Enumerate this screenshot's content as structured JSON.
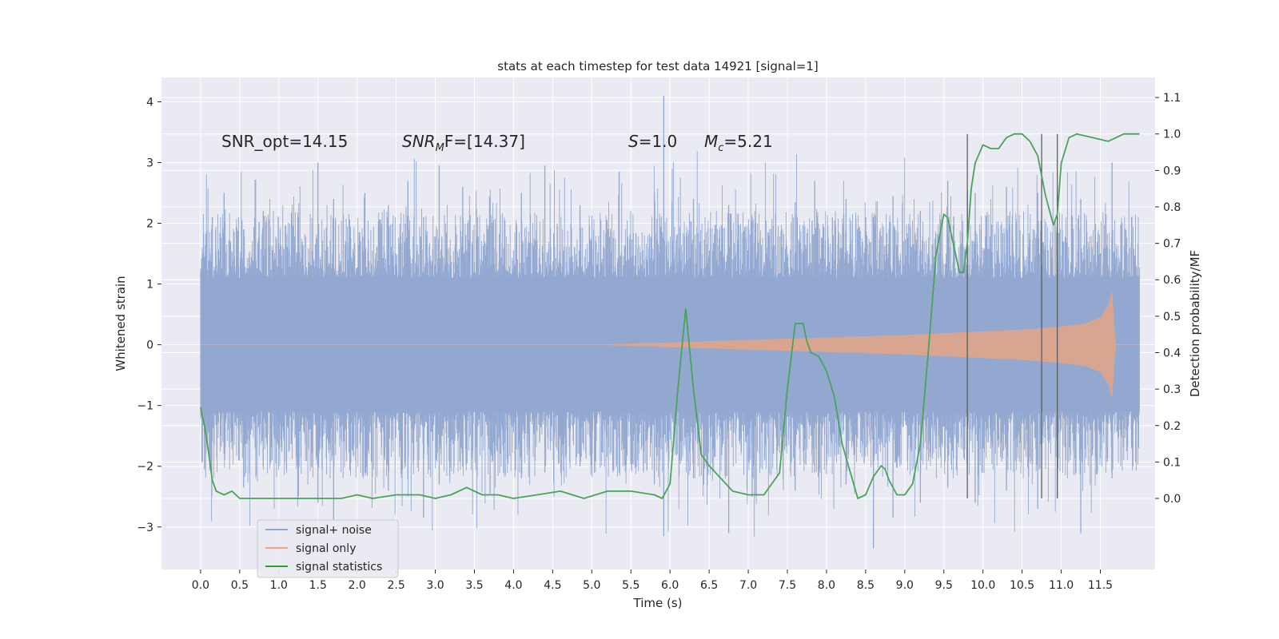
{
  "chart_data": {
    "type": "line",
    "title": "stats at each timestep for test data 14921 [signal=1]",
    "xlabel": "Time (s)",
    "ylabel_left": "Whitened strain",
    "ylabel_right": "Detection probability/MF",
    "xlim": [
      -0.5,
      12.2
    ],
    "ylim_left": [
      -3.7,
      4.4
    ],
    "ylim_right": [
      -0.195,
      1.155
    ],
    "x_ticks": [
      0,
      0.5,
      1,
      1.5,
      2,
      2.5,
      3,
      3.5,
      4,
      4.5,
      5,
      5.5,
      6,
      6.5,
      7,
      7.5,
      8,
      8.5,
      9,
      9.5,
      10,
      10.5,
      11,
      11.5
    ],
    "x_tick_labels": [
      "0.0",
      "0.5",
      "1.0",
      "1.5",
      "2.0",
      "2.5",
      "3.0",
      "3.5",
      "4.0",
      "4.5",
      "5.0",
      "5.5",
      "6.0",
      "6.5",
      "7.0",
      "7.5",
      "8.0",
      "8.5",
      "9.0",
      "9.5",
      "10.0",
      "10.5",
      "11.0",
      "11.5"
    ],
    "y_left_ticks": [
      -3,
      -2,
      -1,
      0,
      1,
      2,
      3,
      4
    ],
    "y_left_tick_labels": [
      "−3",
      "−2",
      "−1",
      "0",
      "1",
      "2",
      "3",
      "4"
    ],
    "y_right_ticks": [
      0,
      0.1,
      0.2,
      0.3,
      0.4,
      0.5,
      0.6,
      0.7,
      0.8,
      0.9,
      1.0,
      1.1
    ],
    "y_right_tick_labels": [
      "0.0",
      "0.1",
      "0.2",
      "0.3",
      "0.4",
      "0.5",
      "0.6",
      "0.7",
      "0.8",
      "0.9",
      "1.0",
      "1.1"
    ],
    "noise_band": {
      "t_start": 0.0,
      "t_end": 12.0,
      "core_amplitude": 1.0,
      "typical_peak_range": [
        1.3,
        2.6
      ],
      "spikes": [
        {
          "t": 0.05,
          "hi": 1.45,
          "lo": -2.05
        },
        {
          "t": 0.15,
          "hi": 2.1,
          "lo": -1.6
        },
        {
          "t": 0.3,
          "hi": 2.5,
          "lo": -1.8
        },
        {
          "t": 0.55,
          "hi": 1.9,
          "lo": -2.35
        },
        {
          "t": 0.8,
          "hi": 2.2,
          "lo": -2.0
        },
        {
          "t": 1.25,
          "hi": 2.1,
          "lo": -2.5
        },
        {
          "t": 1.5,
          "hi": 3.0,
          "lo": -2.6
        },
        {
          "t": 1.7,
          "hi": 2.4,
          "lo": -2.9
        },
        {
          "t": 2.1,
          "hi": 2.5,
          "lo": -2.1
        },
        {
          "t": 2.4,
          "hi": 2.3,
          "lo": -2.4
        },
        {
          "t": 2.65,
          "hi": 2.7,
          "lo": -2.2
        },
        {
          "t": 2.85,
          "hi": 2.1,
          "lo": -2.85
        },
        {
          "t": 3.05,
          "hi": 2.95,
          "lo": -2.3
        },
        {
          "t": 3.35,
          "hi": 2.6,
          "lo": -2.0
        },
        {
          "t": 3.7,
          "hi": 2.4,
          "lo": -2.45
        },
        {
          "t": 4.1,
          "hi": 2.5,
          "lo": -2.2
        },
        {
          "t": 4.4,
          "hi": 2.95,
          "lo": -2.1
        },
        {
          "t": 4.85,
          "hi": 2.3,
          "lo": -2.0
        },
        {
          "t": 5.35,
          "hi": 2.85,
          "lo": -2.1
        },
        {
          "t": 5.8,
          "hi": 2.5,
          "lo": -2.3
        },
        {
          "t": 5.92,
          "hi": 4.1,
          "lo": -3.15
        },
        {
          "t": 6.3,
          "hi": 2.4,
          "lo": -2.2
        },
        {
          "t": 6.75,
          "hi": 2.3,
          "lo": -3.1
        },
        {
          "t": 7.05,
          "hi": 2.1,
          "lo": -2.5
        },
        {
          "t": 7.6,
          "hi": 2.35,
          "lo": -2.4
        },
        {
          "t": 7.85,
          "hi": 2.7,
          "lo": -2.1
        },
        {
          "t": 8.25,
          "hi": 2.4,
          "lo": -2.3
        },
        {
          "t": 8.6,
          "hi": 2.1,
          "lo": -3.35
        },
        {
          "t": 8.85,
          "hi": 2.45,
          "lo": -2.85
        },
        {
          "t": 9.2,
          "hi": 2.2,
          "lo": -2.6
        },
        {
          "t": 9.55,
          "hi": 2.7,
          "lo": -2.35
        },
        {
          "t": 9.9,
          "hi": 2.5,
          "lo": -2.6
        },
        {
          "t": 10.3,
          "hi": 2.6,
          "lo": -2.4
        },
        {
          "t": 10.7,
          "hi": 2.5,
          "lo": -2.7
        },
        {
          "t": 10.95,
          "hi": 2.6,
          "lo": -2.5
        },
        {
          "t": 11.25,
          "hi": 2.4,
          "lo": -3.1
        },
        {
          "t": 11.65,
          "hi": 3.0,
          "lo": -2.2
        },
        {
          "t": 11.9,
          "hi": 2.1,
          "lo": -1.7
        }
      ]
    },
    "signal_envelope": {
      "t": [
        0.0,
        5.0,
        6.0,
        7.0,
        8.0,
        9.0,
        10.0,
        10.5,
        11.0,
        11.3,
        11.5,
        11.6,
        11.65,
        11.68,
        11.7,
        12.0
      ],
      "amp": [
        0.0,
        0.0,
        0.04,
        0.08,
        0.12,
        0.16,
        0.22,
        0.25,
        0.3,
        0.35,
        0.45,
        0.65,
        0.9,
        0.3,
        0.0,
        0.0
      ]
    },
    "signal_statistics": {
      "t": [
        0.0,
        0.05,
        0.1,
        0.15,
        0.2,
        0.3,
        0.4,
        0.5,
        0.6,
        0.8,
        1.0,
        1.2,
        1.5,
        1.8,
        2.0,
        2.2,
        2.5,
        2.8,
        3.0,
        3.2,
        3.4,
        3.6,
        3.8,
        4.0,
        4.3,
        4.6,
        4.9,
        5.2,
        5.5,
        5.8,
        5.9,
        6.0,
        6.1,
        6.2,
        6.3,
        6.4,
        6.5,
        6.8,
        7.0,
        7.2,
        7.4,
        7.5,
        7.6,
        7.7,
        7.75,
        7.8,
        7.9,
        8.0,
        8.1,
        8.2,
        8.4,
        8.5,
        8.6,
        8.7,
        8.75,
        8.8,
        8.9,
        9.0,
        9.1,
        9.2,
        9.3,
        9.4,
        9.5,
        9.55,
        9.6,
        9.7,
        9.75,
        9.8,
        9.85,
        9.9,
        10.0,
        10.1,
        10.2,
        10.3,
        10.4,
        10.5,
        10.6,
        10.7,
        10.8,
        10.9,
        10.95,
        11.0,
        11.1,
        11.2,
        11.4,
        11.6,
        11.7,
        11.8,
        12.0
      ],
      "values": [
        0.25,
        0.2,
        0.13,
        0.05,
        0.02,
        0.01,
        0.02,
        0.0,
        0.0,
        0.0,
        0.0,
        0.0,
        0.0,
        0.0,
        0.01,
        0.0,
        0.01,
        0.01,
        0.0,
        0.01,
        0.03,
        0.01,
        0.01,
        0.0,
        0.01,
        0.02,
        0.0,
        0.02,
        0.02,
        0.01,
        0.0,
        0.04,
        0.3,
        0.52,
        0.3,
        0.12,
        0.09,
        0.02,
        0.01,
        0.01,
        0.07,
        0.3,
        0.48,
        0.48,
        0.43,
        0.4,
        0.39,
        0.35,
        0.28,
        0.15,
        0.0,
        0.01,
        0.06,
        0.09,
        0.08,
        0.05,
        0.01,
        0.01,
        0.04,
        0.15,
        0.4,
        0.67,
        0.78,
        0.77,
        0.72,
        0.62,
        0.62,
        0.7,
        0.85,
        0.92,
        0.97,
        0.96,
        0.96,
        0.99,
        1.0,
        1.0,
        0.98,
        0.94,
        0.83,
        0.75,
        0.78,
        0.92,
        0.99,
        1.0,
        0.99,
        0.98,
        0.99,
        1.0,
        1.0
      ]
    },
    "detection_markers_t": [
      9.8,
      10.75,
      10.95
    ],
    "annotations": {
      "snr_opt": "SNR_opt=14.15",
      "snr_mf_symbol": "SNR",
      "snr_mf_sub": "M",
      "snr_mf_rest": "F=[14.37]",
      "s_symbol": "S",
      "s_rest": "=1.0",
      "mc_symbol": "M",
      "mc_sub": "c",
      "mc_rest": "=5.21"
    },
    "legend": [
      {
        "label": "signal+ noise",
        "color": "#8fa6cf"
      },
      {
        "label": "signal only",
        "color": "#e8a88a"
      },
      {
        "label": "signal statistics",
        "color": "#2ca02c"
      }
    ],
    "legend_placement": "lower-left",
    "grid": true,
    "colors": {
      "background": "#eaeaf2",
      "grid": "#ffffff",
      "noise": "#92a8d1",
      "signal": "#e0a48a",
      "stats": "#4aa35a",
      "markers": "#555555"
    }
  }
}
